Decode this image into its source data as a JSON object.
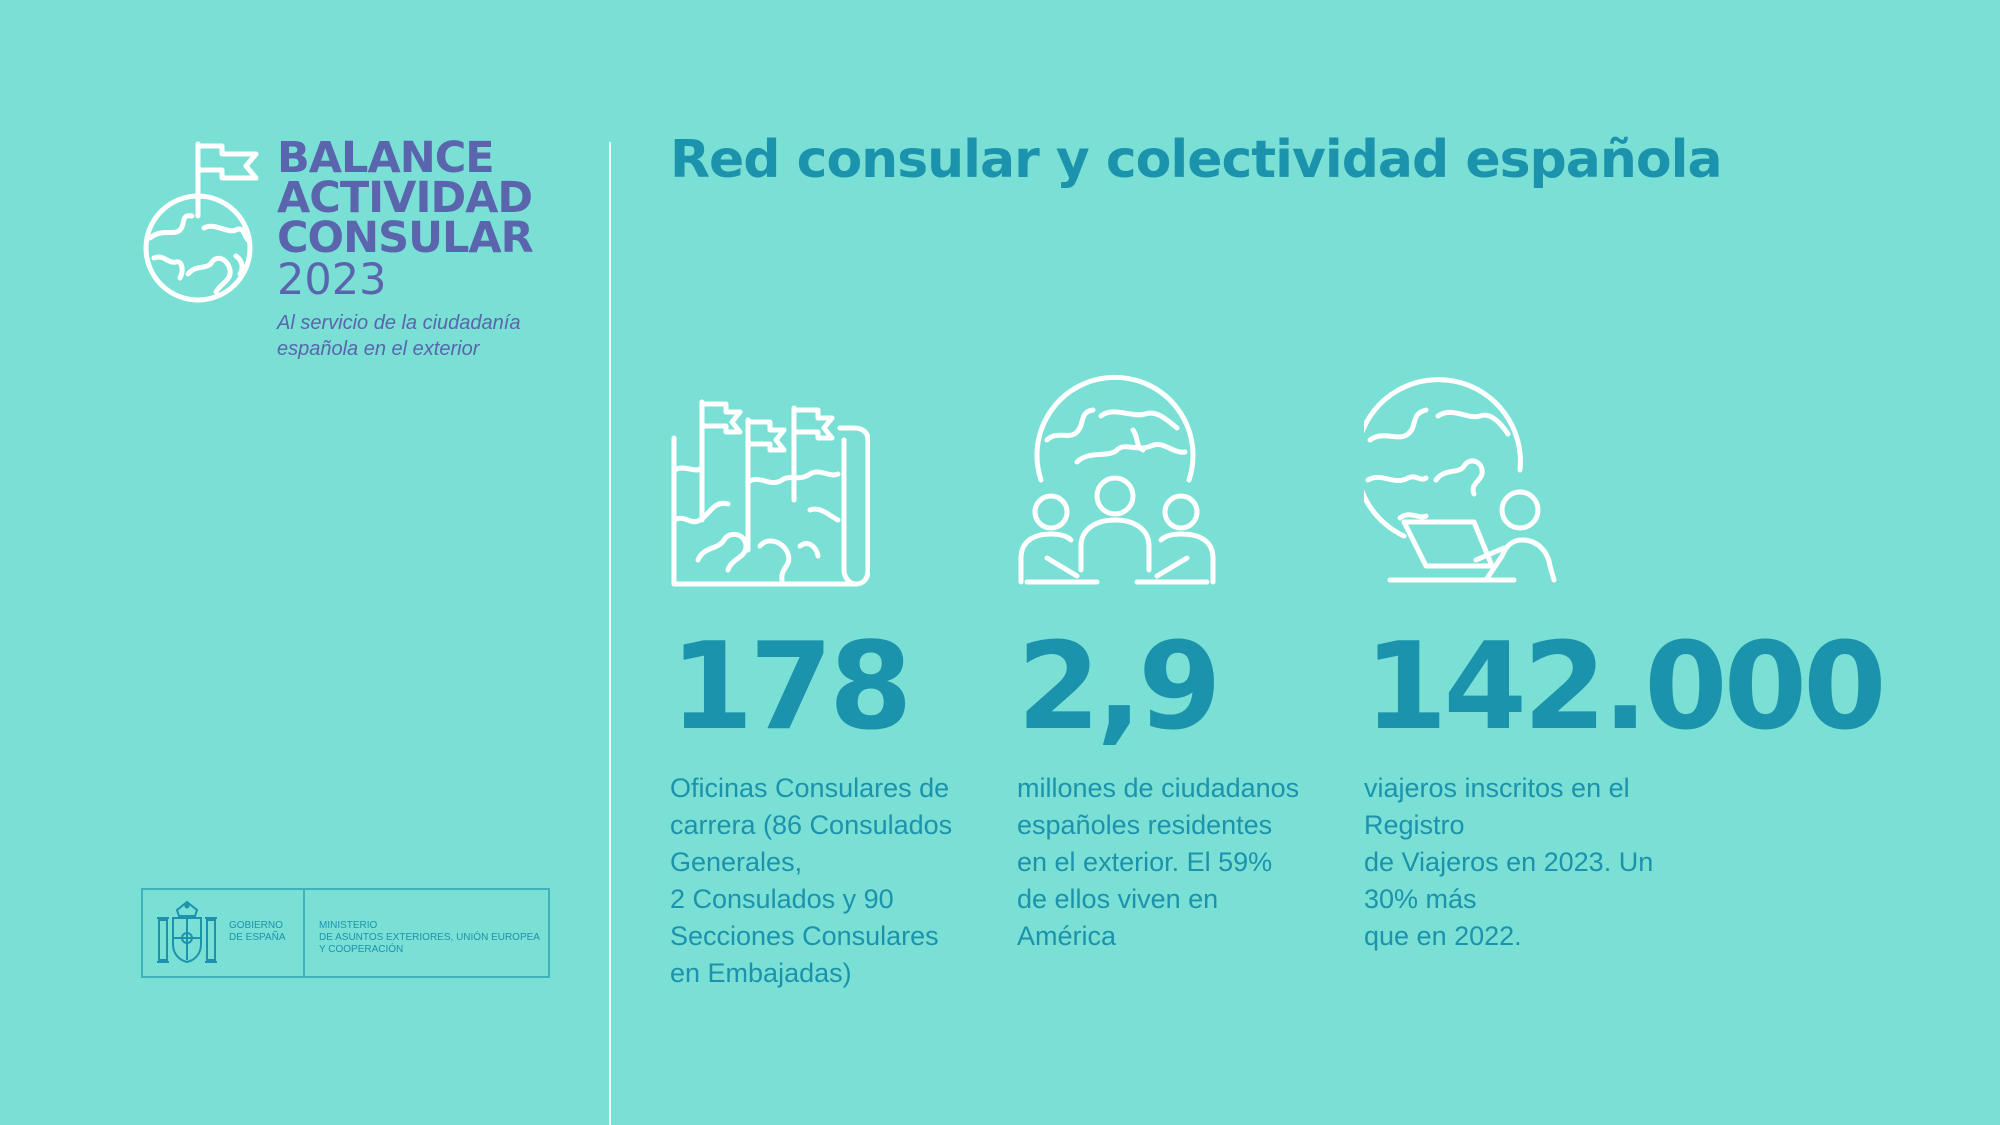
{
  "brand": {
    "line1": "BALANCE",
    "line2": "ACTIVIDAD",
    "line3": "CONSULAR",
    "year": "2023",
    "subtitle": "Al servicio de la ciudadanía española en el exterior",
    "icon": "globe-flag-icon"
  },
  "title": "Red consular y colectividad española",
  "stats": [
    {
      "icon": "map-flags-icon",
      "value": "178",
      "desc": "Oficinas Consulares de\ncarrera (86 Consulados\nGenerales,\n2 Consulados y 90\nSecciones Consulares\nen Embajadas)"
    },
    {
      "icon": "globe-people-icon",
      "value": "2,9",
      "desc": "millones de ciudadanos\nespañoles residentes\nen el exterior. El 59%\nde ellos viven en\nAmérica"
    },
    {
      "icon": "globe-laptop-icon",
      "value": "142.000",
      "desc": "viajeros inscritos en el Registro\nde Viajeros en 2023. Un 30% más\nque en 2022."
    }
  ],
  "gov": {
    "left": "GOBIERNO\nDE ESPAÑA",
    "right": "MINISTERIO\nDE ASUNTOS EXTERIORES, UNIÓN EUROPEA\nY COOPERACIÓN"
  },
  "colors": {
    "background": "#7adfd4",
    "accent": "#1c93ac",
    "brand": "#5a65ad",
    "icon": "#ffffff"
  }
}
